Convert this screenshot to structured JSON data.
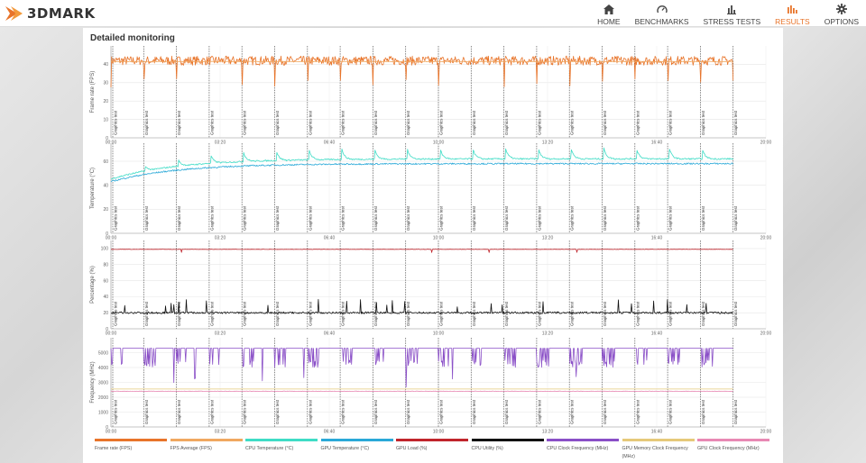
{
  "app": {
    "logo_text": "3DMARK",
    "accent": "#e8742a"
  },
  "nav": [
    {
      "label": "HOME",
      "icon": "home-icon",
      "active": false
    },
    {
      "label": "BENCHMARKS",
      "icon": "gauge-icon",
      "active": false
    },
    {
      "label": "STRESS TESTS",
      "icon": "bar-chart-icon",
      "active": false
    },
    {
      "label": "RESULTS",
      "icon": "results-icon",
      "active": true
    },
    {
      "label": "OPTIONS",
      "icon": "gear-icon",
      "active": false
    }
  ],
  "panel": {
    "title": "Detailed monitoring"
  },
  "chart_data": [
    {
      "type": "line",
      "ylabel": "Frame rate (FPS)",
      "ylim": [
        0,
        50
      ],
      "yticks": [
        0,
        10,
        20,
        30,
        40
      ],
      "xticks": [
        "00:00",
        "03:20",
        "06:40",
        "10:00",
        "13:20",
        "16:40",
        "20:00"
      ],
      "xlim_seconds": [
        0,
        1200
      ],
      "grid": true,
      "marker_label": "Graphics test",
      "markers_seconds": [
        0,
        60,
        120,
        180,
        240,
        300,
        360,
        420,
        480,
        540,
        600,
        660,
        720,
        780,
        840,
        900,
        960,
        1020,
        1080,
        1140
      ],
      "series": [
        {
          "name": "Frame rate (FPS)",
          "color": "#e8742a",
          "base": 42,
          "noise": 2.5,
          "spike_drop": 12
        },
        {
          "name": "FPS Average (FPS)",
          "color": "#f0a860",
          "base": 41.5,
          "noise": 0.3
        }
      ]
    },
    {
      "type": "line",
      "ylabel": "Temperature (°C)",
      "ylim": [
        0,
        75
      ],
      "yticks": [
        0,
        20,
        40,
        60
      ],
      "xticks": [
        "00:00",
        "03:20",
        "06:40",
        "10:00",
        "13:20",
        "16:40",
        "20:00"
      ],
      "xlim_seconds": [
        0,
        1200
      ],
      "grid": true,
      "marker_label": "Graphics test",
      "markers_seconds": [
        0,
        60,
        120,
        180,
        240,
        300,
        360,
        420,
        480,
        540,
        600,
        660,
        720,
        780,
        840,
        900,
        960,
        1020,
        1080,
        1140
      ],
      "series": [
        {
          "name": "CPU Temperature (°C)",
          "color": "#3fdcc6",
          "start": 45,
          "end": 62,
          "spike": 9
        },
        {
          "name": "GPU Temperature (°C)",
          "color": "#2aa9d8",
          "start": 43,
          "end": 58,
          "spike": 1
        }
      ]
    },
    {
      "type": "line",
      "ylabel": "Percentage (%)",
      "ylim": [
        0,
        110
      ],
      "yticks": [
        0,
        20,
        40,
        60,
        80,
        100
      ],
      "xticks": [
        "00:00",
        "03:20",
        "06:40",
        "10:00",
        "13:20",
        "16:40",
        "20:00"
      ],
      "xlim_seconds": [
        0,
        1200
      ],
      "grid": true,
      "marker_label": "Graphics test",
      "markers_seconds": [
        0,
        60,
        120,
        180,
        240,
        300,
        360,
        420,
        480,
        540,
        600,
        660,
        720,
        780,
        840,
        900,
        960,
        1020,
        1080,
        1140
      ],
      "series": [
        {
          "name": "GPU Load (%)",
          "color": "#c0252c",
          "base": 99,
          "noise": 0.4
        },
        {
          "name": "CPU Utility (%)",
          "color": "#111111",
          "base": 20,
          "noise": 1.2,
          "spike": 12
        }
      ]
    },
    {
      "type": "line",
      "ylabel": "Frequency (MHz)",
      "ylim": [
        0,
        6000
      ],
      "yticks": [
        0,
        1000,
        2000,
        3000,
        4000,
        5000
      ],
      "xticks": [
        "00:00",
        "03:20",
        "06:40",
        "10:00",
        "13:20",
        "16:40",
        "20:00"
      ],
      "xlim_seconds": [
        0,
        1200
      ],
      "grid": true,
      "marker_label": "Graphics test",
      "markers_seconds": [
        0,
        60,
        120,
        180,
        240,
        300,
        360,
        420,
        480,
        540,
        600,
        660,
        720,
        780,
        840,
        900,
        960,
        1020,
        1080,
        1140
      ],
      "series": [
        {
          "name": "CPU Clock Frequency (MHz)",
          "color": "#8a4fc7",
          "base": 5300,
          "dip": 4500
        },
        {
          "name": "GPU Memory Clock Frequency (MHz)",
          "color": "#e6c97a",
          "base": 2550
        },
        {
          "name": "GPU Clock Frequency (MHz)",
          "color": "#e889b4",
          "base": 2400,
          "noise": 30
        }
      ]
    }
  ],
  "legend": [
    {
      "label": "Frame rate (FPS)",
      "color": "#e8742a"
    },
    {
      "label": "FPS Average (FPS)",
      "color": "#f0a860"
    },
    {
      "label": "CPU Temperature (°C)",
      "color": "#3fdcc6"
    },
    {
      "label": "GPU Temperature (°C)",
      "color": "#2aa9d8"
    },
    {
      "label": "GPU Load (%)",
      "color": "#c0252c"
    },
    {
      "label": "CPU Utility (%)",
      "color": "#111111"
    },
    {
      "label": "CPU Clock Frequency (MHz)",
      "color": "#8a4fc7"
    },
    {
      "label": "GPU Memory Clock Frequency (MHz)",
      "color": "#e6c97a"
    },
    {
      "label": "GPU Clock Frequency (MHz)",
      "color": "#e889b4"
    }
  ]
}
